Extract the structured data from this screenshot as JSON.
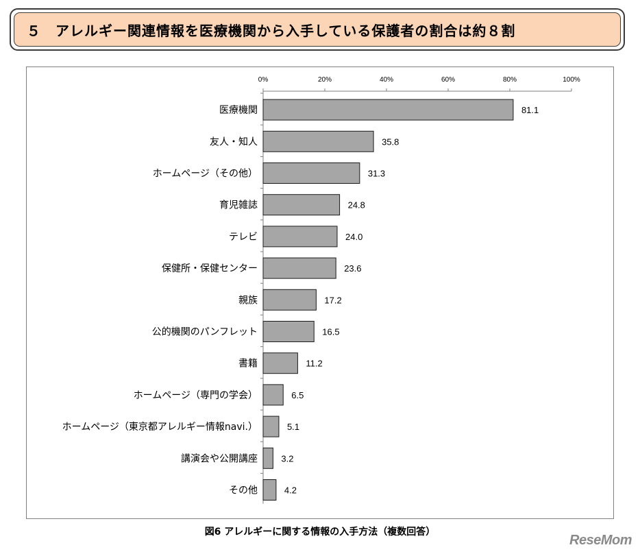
{
  "banner": {
    "title": "５　アレルギー関連情報を医療機関から入手している保護者の割合は約８割"
  },
  "caption": "図6 アレルギーに関する情報の入手方法（複数回答）",
  "logo": "ReseMom",
  "colors": {
    "bar_fill": "#a6a6a6",
    "bar_stroke": "#1a1a1a",
    "banner_fill": "#fbd5b5"
  },
  "chart_data": {
    "type": "bar",
    "orientation": "horizontal",
    "categories": [
      "医療機関",
      "友人・知人",
      "ホームページ（その他）",
      "育児雑誌",
      "テレビ",
      "保健所・保健センター",
      "親族",
      "公的機関のパンフレット",
      "書籍",
      "ホームページ（専門の学会）",
      "ホームページ（東京都アレルギー情報navi.）",
      "講演会や公開講座",
      "その他"
    ],
    "values": [
      81.1,
      35.8,
      31.3,
      24.8,
      24.0,
      23.6,
      17.2,
      16.5,
      11.2,
      6.5,
      5.1,
      3.2,
      4.2
    ],
    "value_labels": [
      "81.1",
      "35.8",
      "31.3",
      "24.8",
      "24.0",
      "23.6",
      "17.2",
      "16.5",
      "11.2",
      "6.5",
      "5.1",
      "3.2",
      "4.2"
    ],
    "xlim": [
      0,
      100
    ],
    "ticks": [
      0,
      20,
      40,
      60,
      80,
      100
    ],
    "tick_labels": [
      "0%",
      "20%",
      "40%",
      "60%",
      "80%",
      "100%"
    ],
    "axis_position": "top",
    "grid": false,
    "legend": "none"
  }
}
